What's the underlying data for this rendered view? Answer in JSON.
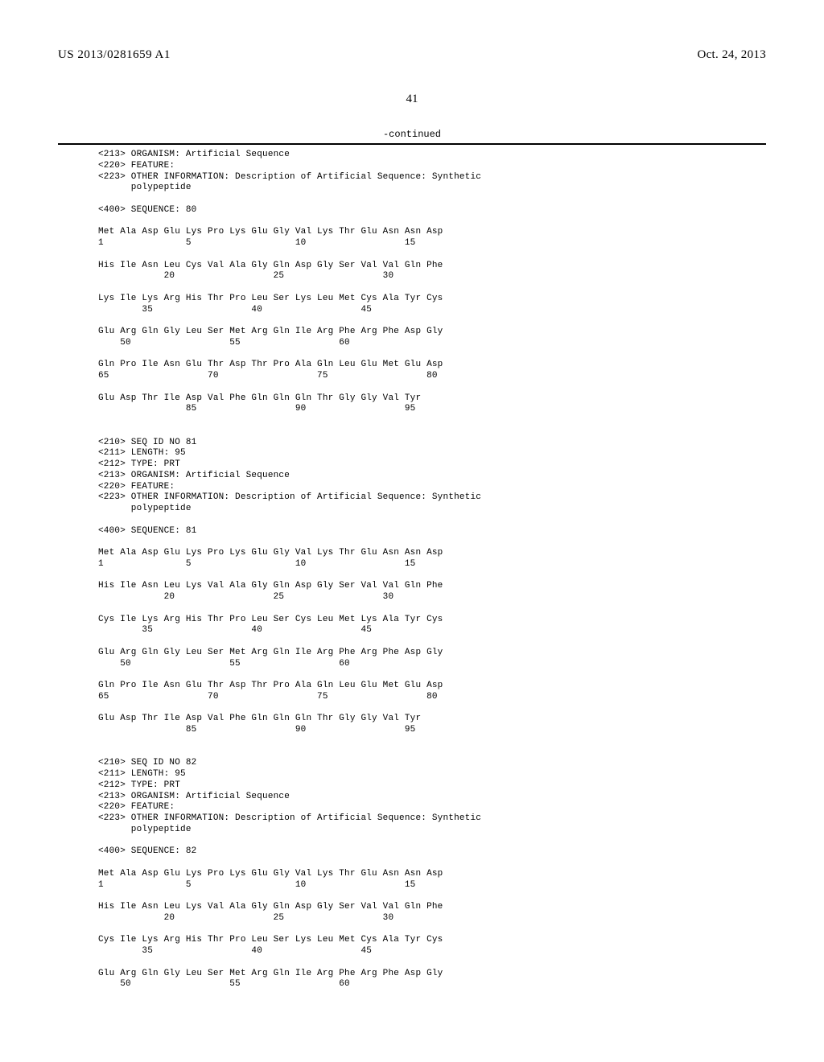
{
  "header": {
    "pub_number": "US 2013/0281659 A1",
    "pub_date": "Oct. 24, 2013"
  },
  "page_number": "41",
  "continued_label": "-continued",
  "listing": "<213> ORGANISM: Artificial Sequence\n<220> FEATURE:\n<223> OTHER INFORMATION: Description of Artificial Sequence: Synthetic\n      polypeptide\n\n<400> SEQUENCE: 80\n\nMet Ala Asp Glu Lys Pro Lys Glu Gly Val Lys Thr Glu Asn Asn Asp\n1               5                   10                  15\n\nHis Ile Asn Leu Cys Val Ala Gly Gln Asp Gly Ser Val Val Gln Phe\n            20                  25                  30\n\nLys Ile Lys Arg His Thr Pro Leu Ser Lys Leu Met Cys Ala Tyr Cys\n        35                  40                  45\n\nGlu Arg Gln Gly Leu Ser Met Arg Gln Ile Arg Phe Arg Phe Asp Gly\n    50                  55                  60\n\nGln Pro Ile Asn Glu Thr Asp Thr Pro Ala Gln Leu Glu Met Glu Asp\n65                  70                  75                  80\n\nGlu Asp Thr Ile Asp Val Phe Gln Gln Gln Thr Gly Gly Val Tyr\n                85                  90                  95\n\n\n<210> SEQ ID NO 81\n<211> LENGTH: 95\n<212> TYPE: PRT\n<213> ORGANISM: Artificial Sequence\n<220> FEATURE:\n<223> OTHER INFORMATION: Description of Artificial Sequence: Synthetic\n      polypeptide\n\n<400> SEQUENCE: 81\n\nMet Ala Asp Glu Lys Pro Lys Glu Gly Val Lys Thr Glu Asn Asn Asp\n1               5                   10                  15\n\nHis Ile Asn Leu Lys Val Ala Gly Gln Asp Gly Ser Val Val Gln Phe\n            20                  25                  30\n\nCys Ile Lys Arg His Thr Pro Leu Ser Cys Leu Met Lys Ala Tyr Cys\n        35                  40                  45\n\nGlu Arg Gln Gly Leu Ser Met Arg Gln Ile Arg Phe Arg Phe Asp Gly\n    50                  55                  60\n\nGln Pro Ile Asn Glu Thr Asp Thr Pro Ala Gln Leu Glu Met Glu Asp\n65                  70                  75                  80\n\nGlu Asp Thr Ile Asp Val Phe Gln Gln Gln Thr Gly Gly Val Tyr\n                85                  90                  95\n\n\n<210> SEQ ID NO 82\n<211> LENGTH: 95\n<212> TYPE: PRT\n<213> ORGANISM: Artificial Sequence\n<220> FEATURE:\n<223> OTHER INFORMATION: Description of Artificial Sequence: Synthetic\n      polypeptide\n\n<400> SEQUENCE: 82\n\nMet Ala Asp Glu Lys Pro Lys Glu Gly Val Lys Thr Glu Asn Asn Asp\n1               5                   10                  15\n\nHis Ile Asn Leu Lys Val Ala Gly Gln Asp Gly Ser Val Val Gln Phe\n            20                  25                  30\n\nCys Ile Lys Arg His Thr Pro Leu Ser Lys Leu Met Cys Ala Tyr Cys\n        35                  40                  45\n\nGlu Arg Gln Gly Leu Ser Met Arg Gln Ile Arg Phe Arg Phe Asp Gly\n    50                  55                  60"
}
